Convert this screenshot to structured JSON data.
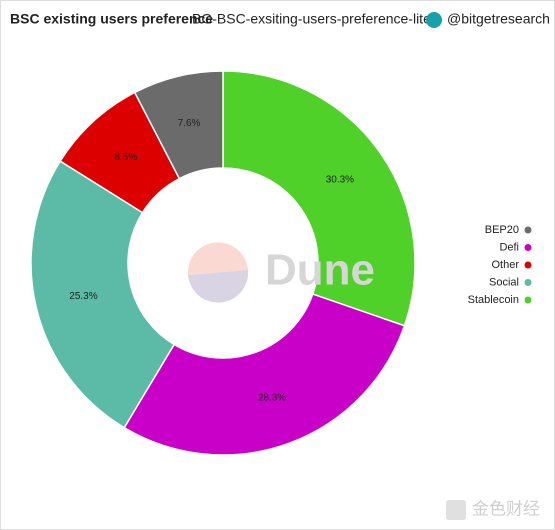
{
  "header": {
    "title": "BSC existing users preference",
    "query": "BG-BSC-exsiting-users-preference-lite",
    "author": "@bitgetresearch"
  },
  "chart_data": {
    "type": "pie",
    "donut": true,
    "categories": [
      "Stablecoin",
      "Defi",
      "Social",
      "Other",
      "BEP20"
    ],
    "values": [
      30.3,
      28.3,
      25.3,
      8.5,
      7.6
    ],
    "value_labels": [
      "30.3%",
      "28.3%",
      "25.3%",
      "8.5%",
      "7.6%"
    ],
    "colors": [
      "#4fd12a",
      "#c800c8",
      "#5bbba6",
      "#dd0000",
      "#6b6b6b"
    ],
    "legend": "right"
  },
  "watermarks": [
    "Dune",
    "金色财经"
  ]
}
